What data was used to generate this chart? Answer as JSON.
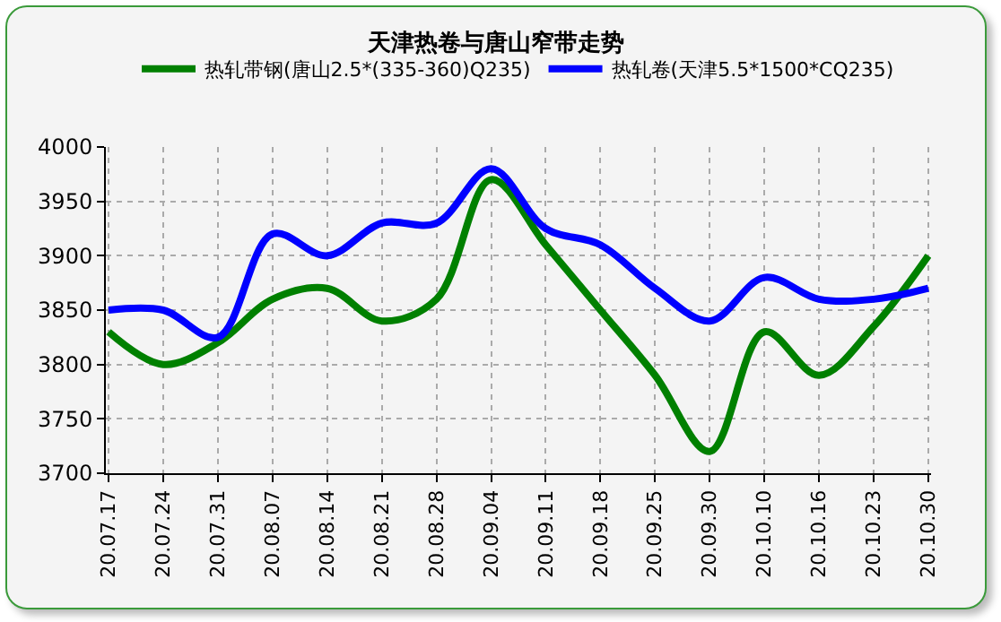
{
  "chart_data": {
    "type": "line",
    "title": "天津热卷与唐山窄带走势",
    "categories": [
      "20.07.17",
      "20.07.24",
      "20.07.31",
      "20.08.07",
      "20.08.14",
      "20.08.21",
      "20.08.28",
      "20.09.04",
      "20.09.11",
      "20.09.18",
      "20.09.25",
      "20.09.30",
      "20.10.10",
      "20.10.16",
      "20.10.23",
      "20.10.30"
    ],
    "series": [
      {
        "name": "热轧带钢(唐山2.5*(335-360)Q235)",
        "color": "#008000",
        "values": [
          3830,
          3800,
          3820,
          3860,
          3870,
          3840,
          3860,
          3970,
          3910,
          3850,
          3790,
          3720,
          3830,
          3790,
          3835,
          3900
        ]
      },
      {
        "name": "热轧卷(天津5.5*1500*CQ235)",
        "color": "#0000ff",
        "values": [
          3850,
          3850,
          3825,
          3920,
          3900,
          3930,
          3930,
          3980,
          3925,
          3910,
          3870,
          3840,
          3880,
          3860,
          3860,
          3870
        ]
      }
    ],
    "ylim": [
      3700,
      4000
    ],
    "yticks": [
      3700,
      3750,
      3800,
      3850,
      3900,
      3950,
      4000
    ],
    "grid": true,
    "legend": "top"
  }
}
